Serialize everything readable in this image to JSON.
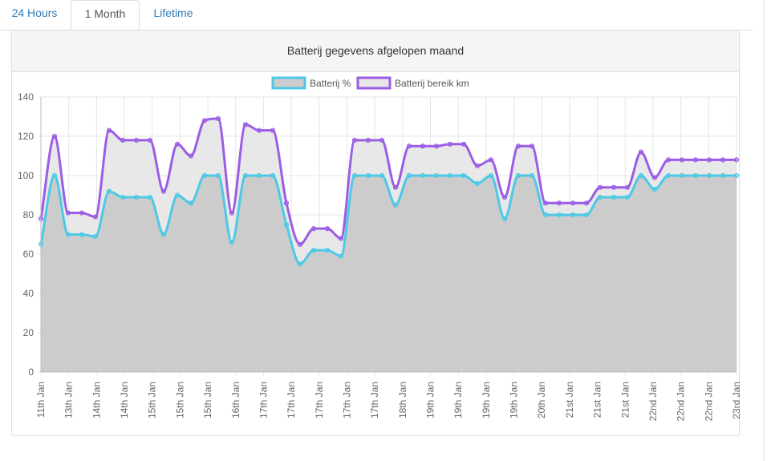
{
  "tabs": [
    {
      "label": "24 Hours",
      "active": false
    },
    {
      "label": "1 Month",
      "active": true
    },
    {
      "label": "Lifetime",
      "active": false
    }
  ],
  "panel": {
    "title": "Batterij gegevens afgelopen maand"
  },
  "colors": {
    "battery_line": "#4dc9e6",
    "range_line": "#9b5de5",
    "battery_fill": "#cccccc",
    "range_fill": "#e6e6e6",
    "tab_link": "#337ab7"
  },
  "chart_data": {
    "type": "area",
    "title": "",
    "xlabel": "",
    "ylabel": "",
    "ylim": [
      0,
      140
    ],
    "yticks": [
      0,
      20,
      40,
      60,
      80,
      100,
      120,
      140
    ],
    "grid": true,
    "legend_position": "top",
    "x_tick_labels": [
      "11th Jan",
      "13th Jan",
      "14th Jan",
      "14th Jan",
      "15th Jan",
      "15th Jan",
      "15th Jan",
      "16th Jan",
      "17th Jan",
      "17th Jan",
      "17th Jan",
      "17th Jan",
      "17th Jan",
      "18th Jan",
      "19th Jan",
      "19th Jan",
      "19th Jan",
      "19th Jan",
      "20th Jan",
      "21st Jan",
      "21st Jan",
      "21st Jan",
      "22nd Jan",
      "22nd Jan",
      "22nd Jan",
      "23rd Jan"
    ],
    "series": [
      {
        "name": "Batterij %",
        "values": [
          65,
          100,
          70,
          70,
          69,
          92,
          89,
          89,
          89,
          70,
          90,
          86,
          100,
          100,
          66,
          100,
          100,
          100,
          75,
          55,
          62,
          62,
          59,
          100,
          100,
          100,
          85,
          100,
          100,
          100,
          100,
          100,
          96,
          100,
          78,
          100,
          100,
          80,
          80,
          80,
          80,
          89,
          89,
          89,
          100,
          93,
          100,
          100,
          100,
          100,
          100,
          100
        ]
      },
      {
        "name": "Batterij bereik km",
        "values": [
          78,
          120,
          81,
          81,
          79,
          123,
          118,
          118,
          118,
          92,
          116,
          110,
          128,
          129,
          81,
          126,
          123,
          123,
          86,
          65,
          73,
          73,
          68,
          118,
          118,
          118,
          94,
          115,
          115,
          115,
          116,
          116,
          105,
          108,
          89,
          115,
          115,
          86,
          86,
          86,
          86,
          94,
          94,
          94,
          112,
          99,
          108,
          108,
          108,
          108,
          108,
          108
        ]
      }
    ]
  }
}
